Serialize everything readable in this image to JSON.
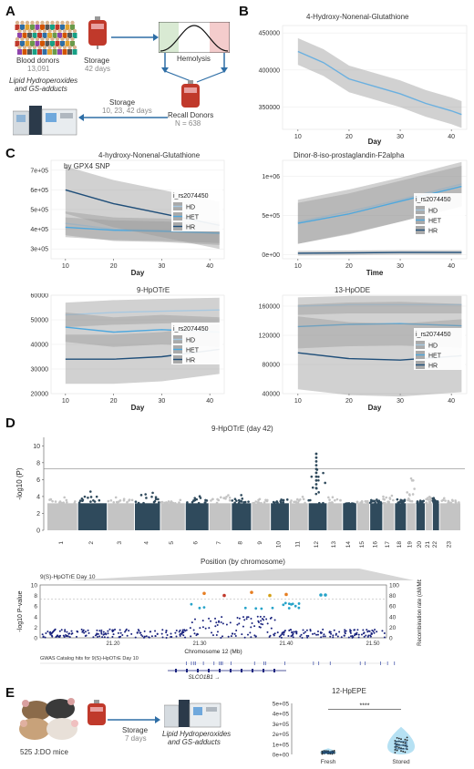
{
  "panelA": {
    "label": "A",
    "blood_donors": "Blood donors",
    "donor_count": "13,091",
    "storage": "Storage",
    "storage_days": "42 days",
    "hemolysis": "Hemolysis",
    "lipid_text": "Lipid Hydroperoxides",
    "gs_text": "and GS-adducts",
    "storage2": "Storage",
    "storage2_days": "10, 23, 42 days",
    "recall": "Recall Donors",
    "recall_n": "N = 638"
  },
  "panelB": {
    "label": "B",
    "title": "4-Hydroxy-Nonenal-Glutathione",
    "xlabel": "Day",
    "yticks": [
      "450000",
      "400000",
      "350000"
    ],
    "xticks": [
      "10",
      "20",
      "30",
      "40"
    ]
  },
  "panelC": {
    "label": "C",
    "p1": {
      "title": "4-hydroxy-Nonenal-Glutathione",
      "subtitle": "by GPX4 SNP",
      "xlabel": "Day",
      "yticks": [
        "7e+05",
        "6e+05",
        "5e+05",
        "4e+05",
        "3e+05"
      ],
      "xticks": [
        "10",
        "20",
        "30",
        "40"
      ]
    },
    "p2": {
      "title": "Dinor-8-iso-prostaglandin-F2alpha",
      "xlabel": "Time",
      "yticks": [
        "1e+06",
        "5e+05",
        "0e+00"
      ],
      "xticks": [
        "10",
        "20",
        "30",
        "40"
      ]
    },
    "p3": {
      "title": "9-HpOTrE",
      "xlabel": "Day",
      "yticks": [
        "60000",
        "50000",
        "40000",
        "30000",
        "20000"
      ],
      "xticks": [
        "10",
        "20",
        "30",
        "40"
      ]
    },
    "p4": {
      "title": "13-HpODE",
      "xlabel": "Day",
      "yticks": [
        "160000",
        "120000",
        "80000",
        "40000"
      ],
      "xticks": [
        "10",
        "20",
        "30",
        "40"
      ]
    },
    "legend": {
      "title": "i_rs2074450",
      "items": [
        "HD",
        "HET",
        "HR"
      ]
    },
    "colors": {
      "HD": "#a8c8e0",
      "HET": "#4ea8de",
      "HR": "#1f4e79",
      "band": "#b0b0b0"
    }
  },
  "panelD": {
    "label": "D",
    "title": "9-HpOTrE (day 42)",
    "ylabel": "-log10 (P)",
    "xlabel": "Position (by chromosome)",
    "yticks": [
      "0",
      "2",
      "4",
      "6",
      "8",
      "10"
    ],
    "chromosomes": [
      "1",
      "2",
      "3",
      "4",
      "5",
      "6",
      "7",
      "8",
      "9",
      "10",
      "11",
      "12",
      "13",
      "14",
      "15",
      "16",
      "17",
      "18",
      "19",
      "20",
      "21",
      "22",
      "23"
    ],
    "zoom_title": "9(S)-HpOTrE Day 10",
    "zoom_ylabel": "-log10 P-value",
    "zoom_yticks": [
      "0",
      "2",
      "4",
      "6",
      "8",
      "10"
    ],
    "zoom_y2label": "Recombination rate (cM/Mb)",
    "zoom_y2ticks": [
      "0",
      "20",
      "40",
      "60",
      "80",
      "100"
    ],
    "zoom_xticks": [
      "21.20",
      "21.30",
      "21.40",
      "21.50"
    ],
    "zoom_xlabel": "Chromosome 12 (Mb)",
    "gwas_catalog": "GWAS Catalog hits for 9(S)-HpOTrE Day 10",
    "gene": "SLCO1B1 →"
  },
  "panelE": {
    "label": "E",
    "mice": "525 J:DO mice",
    "storage": "Storage",
    "storage_days": "7 days",
    "lipid_text": "Lipid Hydroperoxides",
    "gs_text": "and GS-adducts",
    "chart_title": "12-HpEPE",
    "sig": "****",
    "yticks": [
      "0e+00",
      "1e+05",
      "2e+05",
      "3e+05",
      "4e+05",
      "5e+05"
    ],
    "categories": [
      "Fresh",
      "Stored"
    ]
  },
  "chart_data": [
    {
      "type": "line",
      "title": "4-Hydroxy-Nonenal-Glutathione",
      "xlabel": "Day",
      "ylabel": "",
      "ylim": [
        320000,
        460000
      ],
      "x": [
        10,
        15,
        20,
        25,
        30,
        35,
        40,
        42
      ],
      "series": [
        {
          "values": [
            425000,
            410000,
            388000,
            378000,
            368000,
            355000,
            345000,
            340000
          ]
        }
      ]
    },
    {
      "type": "line",
      "title": "4-hydroxy-Nonenal-Glutathione",
      "subtitle": "by GPX4 SNP",
      "xlabel": "Day",
      "ylim": [
        250000,
        750000
      ],
      "x": [
        10,
        20,
        30,
        42
      ],
      "series": [
        {
          "name": "HD",
          "values": [
            430000,
            400000,
            395000,
            380000
          ]
        },
        {
          "name": "HET",
          "values": [
            410000,
            395000,
            390000,
            380000
          ]
        },
        {
          "name": "HR",
          "values": [
            600000,
            530000,
            480000,
            420000
          ]
        }
      ]
    },
    {
      "type": "line",
      "title": "Dinor-8-iso-prostaglandin-F2alpha",
      "xlabel": "Time",
      "ylim": [
        -50000,
        1200000
      ],
      "x": [
        10,
        20,
        30,
        42
      ],
      "series": [
        {
          "name": "HD",
          "values": [
            420000,
            550000,
            700000,
            900000
          ]
        },
        {
          "name": "HET",
          "values": [
            400000,
            520000,
            680000,
            870000
          ]
        },
        {
          "name": "HR",
          "values": [
            20000,
            25000,
            30000,
            30000
          ]
        }
      ]
    },
    {
      "type": "line",
      "title": "9-HpOTrE",
      "xlabel": "Day",
      "ylim": [
        20000,
        60000
      ],
      "x": [
        10,
        20,
        30,
        42
      ],
      "series": [
        {
          "name": "HD",
          "values": [
            52000,
            53000,
            53500,
            54000
          ]
        },
        {
          "name": "HET",
          "values": [
            47000,
            45000,
            46000,
            45000
          ]
        },
        {
          "name": "HR",
          "values": [
            34000,
            34000,
            35000,
            38000
          ]
        }
      ]
    },
    {
      "type": "line",
      "title": "13-HpODE",
      "xlabel": "Day",
      "ylim": [
        40000,
        175000
      ],
      "x": [
        10,
        20,
        30,
        42
      ],
      "series": [
        {
          "name": "HD",
          "values": [
            160000,
            162000,
            162000,
            162000
          ]
        },
        {
          "name": "HET",
          "values": [
            132000,
            135000,
            136000,
            133000
          ]
        },
        {
          "name": "HR",
          "values": [
            96000,
            88000,
            86000,
            92000
          ]
        }
      ]
    },
    {
      "type": "bar",
      "title": "12-HpEPE",
      "categories": [
        "Fresh",
        "Stored"
      ],
      "values": [
        20000,
        90000
      ],
      "ylim": [
        0,
        500000
      ]
    }
  ]
}
